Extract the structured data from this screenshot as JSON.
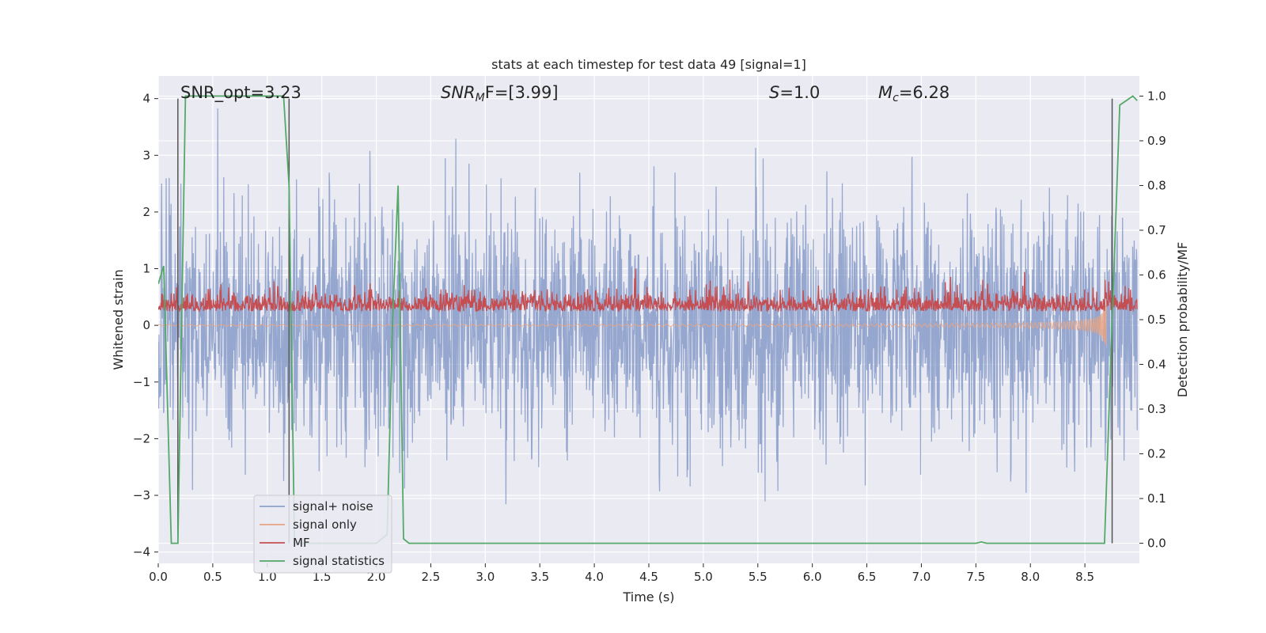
{
  "chart_data": {
    "type": "line",
    "title": "stats at each timestep for test data 49 [signal=1]",
    "xlabel": "Time (s)",
    "ylabel_left": "Whitened strain",
    "ylabel_right": "Detection probability/MF",
    "xlim": [
      0.0,
      9.0
    ],
    "ylim_left": [
      -4.2,
      4.4
    ],
    "ylim_right": [
      -0.045,
      1.045
    ],
    "x_ticks": [
      "0.0",
      "0.5",
      "1.0",
      "1.5",
      "2.0",
      "2.5",
      "3.0",
      "3.5",
      "4.0",
      "4.5",
      "5.0",
      "5.5",
      "6.0",
      "6.5",
      "7.0",
      "7.5",
      "8.0",
      "8.5"
    ],
    "y_ticks_left": [
      "−4",
      "−3",
      "−2",
      "−1",
      "0",
      "1",
      "2",
      "3",
      "4"
    ],
    "y_ticks_right": [
      "0.0",
      "0.1",
      "0.2",
      "0.3",
      "0.4",
      "0.5",
      "0.6",
      "0.7",
      "0.8",
      "0.9",
      "1.0"
    ],
    "grid": true,
    "legend_position": "lower-left",
    "annotations": {
      "snr_opt": "SNR_opt=3.23",
      "snr_mf_main": "SNR",
      "snr_mf_sub": "M",
      "snr_mf_rest": "F=[3.99]",
      "s_main": "S",
      "s_rest": "=1.0",
      "mc_main": "M",
      "mc_sub": "c",
      "mc_rest": "=6.28"
    },
    "vertical_lines_x": [
      0.18,
      1.2,
      8.75
    ],
    "series": [
      {
        "name": "signal+ noise",
        "color": "#8da0cb",
        "kind": "noise",
        "axis": "left",
        "sigma": 1.0,
        "t_start": 0.0,
        "t_end": 8.98
      },
      {
        "name": "signal only",
        "color": "#e8a383",
        "kind": "chirp",
        "axis": "left",
        "t_start": 0.0,
        "t_end": 8.7,
        "merger_t": 8.7
      },
      {
        "name": "MF",
        "color": "#c44e52",
        "kind": "mf",
        "axis": "left",
        "mean": 0.25,
        "t_start": 0.0,
        "t_end": 8.98
      },
      {
        "name": "signal statistics",
        "color": "#55a868",
        "kind": "line",
        "axis": "right",
        "x": [
          0.0,
          0.05,
          0.12,
          0.18,
          0.25,
          0.3,
          1.15,
          1.2,
          1.25,
          1.3,
          2.0,
          2.1,
          2.15,
          2.2,
          2.25,
          2.3,
          7.5,
          7.55,
          7.6,
          7.65,
          8.68,
          8.75,
          8.82,
          8.88,
          8.94,
          8.98
        ],
        "y": [
          0.58,
          0.62,
          0.0,
          0.0,
          1.0,
          1.0,
          1.0,
          0.8,
          0.0,
          0.0,
          0.0,
          0.02,
          0.5,
          0.8,
          0.01,
          0.0,
          0.0,
          0.003,
          0.0,
          0.0,
          0.0,
          0.5,
          0.98,
          0.99,
          1.0,
          0.99
        ]
      }
    ]
  }
}
